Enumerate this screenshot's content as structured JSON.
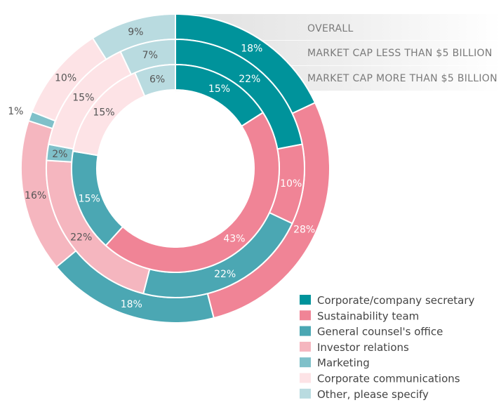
{
  "chart_data": {
    "type": "donut",
    "series": [
      {
        "name": "OVERALL",
        "values": [
          18,
          28,
          18,
          16,
          1,
          10,
          9
        ]
      },
      {
        "name": "MARKET CAP LESS THAN $5 BILLION",
        "values": [
          22,
          10,
          22,
          22,
          2,
          15,
          7
        ]
      },
      {
        "name": "MARKET CAP MORE THAN $5 BILLION",
        "values": [
          15,
          43,
          15,
          0,
          0,
          15,
          6
        ]
      }
    ],
    "categories": [
      "Corporate/company secretary",
      "Sustainability team",
      "General counsel's office",
      "Investor relations",
      "Marketing",
      "Corporate communications",
      "Other, please specify"
    ],
    "colors": [
      "#00939b",
      "#f08496",
      "#4ba7b3",
      "#f5b6bf",
      "#7fc0c9",
      "#fde3e6",
      "#b9dbe0"
    ],
    "legend_position": "bottom-right"
  }
}
